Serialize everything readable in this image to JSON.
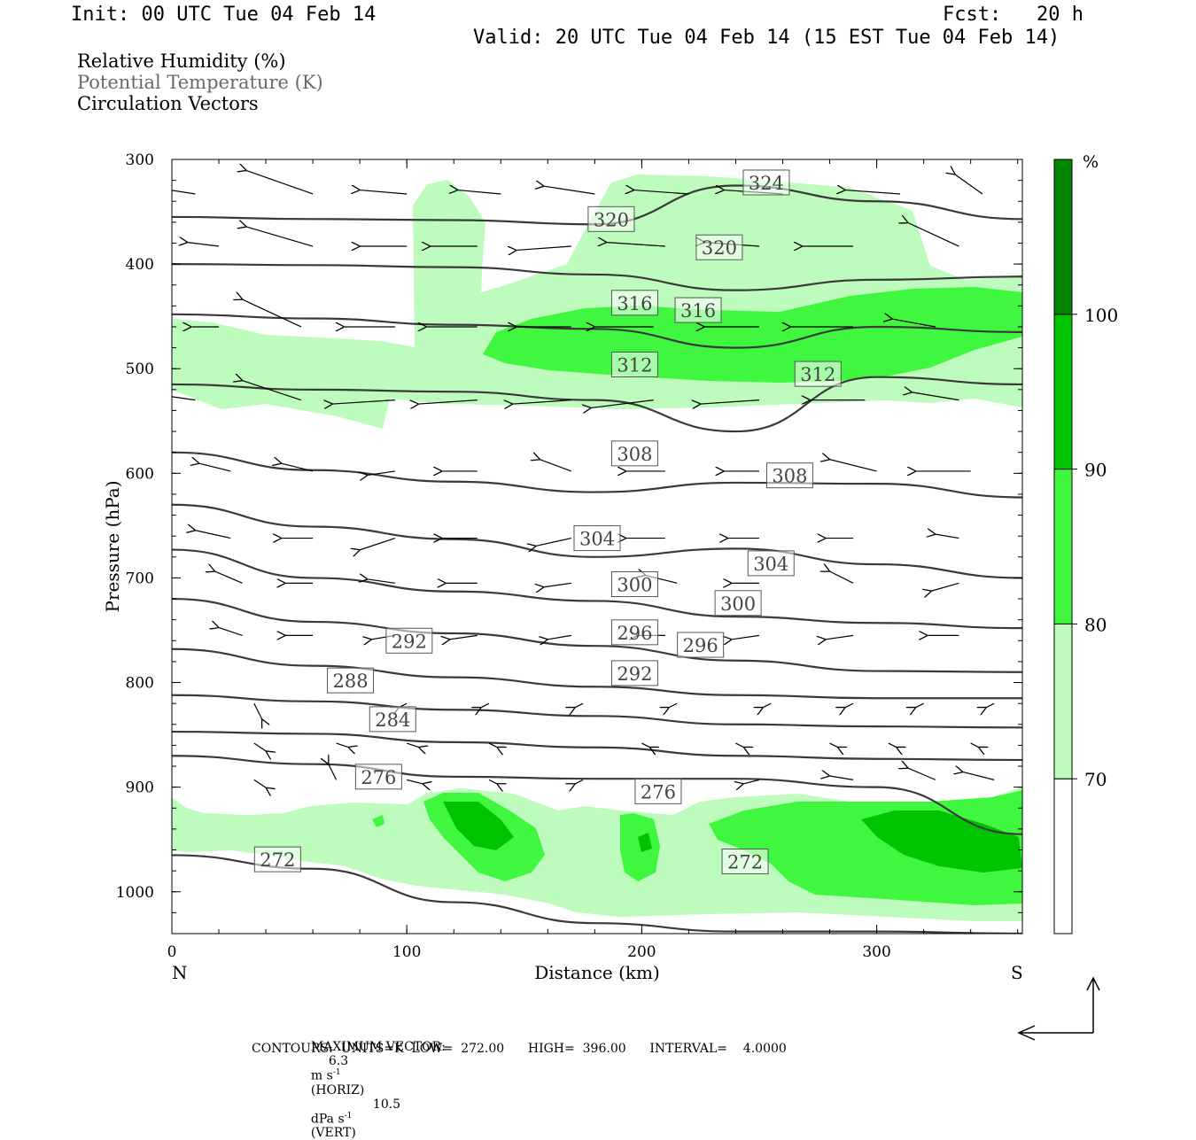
{
  "header": {
    "init": "Init: 00 UTC Tue 04 Feb 14",
    "fcst": "Fcst:   20 h",
    "valid": "Valid: 20 UTC Tue 04 Feb 14 (15 EST Tue 04 Feb 14)"
  },
  "fields": {
    "rh": "Relative Humidity (%)",
    "theta": "Potential Temperature (K)",
    "vectors": "Circulation Vectors"
  },
  "chart_data": {
    "type": "cross-section",
    "ylabel": "Pressure (hPa)",
    "xlabel": "Distance (km)",
    "xlim": [
      0,
      362
    ],
    "ylim": [
      300,
      1040
    ],
    "y_log_scale": false,
    "x_ticks": [
      "0",
      "100",
      "200",
      "300"
    ],
    "y_ticks": [
      "300",
      "400",
      "500",
      "600",
      "700",
      "800",
      "900",
      "1000"
    ],
    "left_end_label": "N",
    "right_end_label": "S",
    "colorbar": {
      "unit": "%",
      "levels": [
        "70",
        "80",
        "90",
        "100"
      ],
      "colors": [
        "#ffffff",
        "#bdfcbd",
        "#3ef73e",
        "#00c400",
        "#008600"
      ]
    },
    "theta_contours": [
      {
        "label": "324",
        "x": [
          0,
          60,
          120,
          180,
          240,
          300,
          362
        ],
        "p": [
          355,
          357,
          358,
          362,
          325,
          340,
          357
        ],
        "labels_at": [
          [
            253,
            322
          ]
        ]
      },
      {
        "label": "320",
        "x": [
          0,
          60,
          120,
          180,
          240,
          300,
          362
        ],
        "p": [
          400,
          401,
          403,
          410,
          425,
          415,
          412
        ],
        "labels_at": [
          [
            187,
            357
          ],
          [
            233,
            384
          ]
        ]
      },
      {
        "label": "316",
        "x": [
          0,
          60,
          120,
          180,
          240,
          300,
          362
        ],
        "p": [
          448,
          452,
          458,
          462,
          480,
          460,
          465
        ],
        "labels_at": [
          [
            197,
            437
          ],
          [
            224,
            444
          ]
        ]
      },
      {
        "label": "312",
        "x": [
          0,
          60,
          120,
          180,
          240,
          300,
          362
        ],
        "p": [
          515,
          520,
          522,
          530,
          560,
          508,
          515
        ],
        "labels_at": [
          [
            197,
            496
          ],
          [
            275,
            505
          ]
        ]
      },
      {
        "label": "308",
        "x": [
          0,
          60,
          120,
          180,
          240,
          300,
          362
        ],
        "p": [
          580,
          597,
          608,
          618,
          609,
          610,
          623
        ],
        "labels_at": [
          [
            197,
            581
          ],
          [
            263,
            602
          ]
        ]
      },
      {
        "label": "304",
        "x": [
          0,
          60,
          120,
          180,
          240,
          300,
          362
        ],
        "p": [
          630,
          651,
          663,
          680,
          672,
          687,
          700
        ],
        "labels_at": [
          [
            181,
            662
          ],
          [
            255,
            686
          ]
        ]
      },
      {
        "label": "300",
        "x": [
          0,
          60,
          120,
          180,
          240,
          300,
          362
        ],
        "p": [
          673,
          700,
          713,
          722,
          737,
          743,
          748
        ],
        "labels_at": [
          [
            197,
            706
          ],
          [
            241,
            724
          ]
        ]
      },
      {
        "label": "296",
        "x": [
          0,
          60,
          120,
          180,
          240,
          300,
          362
        ],
        "p": [
          720,
          742,
          753,
          765,
          779,
          789,
          790
        ],
        "labels_at": [
          [
            197,
            752
          ],
          [
            225,
            764
          ]
        ]
      },
      {
        "label": "292",
        "x": [
          0,
          60,
          120,
          180,
          240,
          300,
          362
        ],
        "p": [
          768,
          784,
          795,
          804,
          812,
          815,
          815
        ],
        "labels_at": [
          [
            101,
            760
          ],
          [
            197,
            791
          ]
        ]
      },
      {
        "label": "288",
        "x": [
          0,
          60,
          120,
          180,
          240,
          300,
          362
        ],
        "p": [
          812,
          818,
          826,
          832,
          840,
          842,
          843
        ],
        "labels_at": [
          [
            76,
            798
          ]
        ]
      },
      {
        "label": "284",
        "x": [
          0,
          60,
          120,
          180,
          240,
          300,
          362
        ],
        "p": [
          847,
          849,
          857,
          862,
          870,
          873,
          874
        ],
        "labels_at": [
          [
            94,
            835
          ]
        ]
      },
      {
        "label": "276",
        "x": [
          0,
          60,
          120,
          180,
          240,
          300,
          362
        ],
        "p": [
          870,
          878,
          890,
          892,
          892,
          900,
          945
        ],
        "labels_at": [
          [
            88,
            890
          ],
          [
            207,
            904
          ]
        ]
      },
      {
        "label": "272",
        "x": [
          0,
          60,
          120,
          180,
          240,
          300,
          362
        ],
        "p": [
          965,
          978,
          1010,
          1030,
          1038,
          1038,
          1040
        ],
        "labels_at": [
          [
            45,
            969
          ],
          [
            244,
            971
          ]
        ]
      }
    ],
    "rh_shading_note": "RH >= 70% shading in two layers: 350-540 hPa (70-90%) and 905-1030 hPa near surface (70-100%)",
    "maximum_vector": {
      "horiz": "6.3 m s⁻¹ (HORIZ)",
      "vert": "10.5 dPa s⁻¹ (VERT)"
    },
    "contours": {
      "units": "K",
      "low": "272.00",
      "high": "396.00",
      "interval": "4.0000"
    }
  },
  "footer": {
    "max_vector_label": "MAXIMUM VECTOR:",
    "max_vector_horiz_value": "6.3",
    "max_vector_horiz_unit": "m s",
    "max_vector_horiz_suffix": "(HORIZ)",
    "max_vector_vert_value": "10.5",
    "max_vector_vert_unit": "dPa s",
    "max_vector_vert_suffix": "(VERT)",
    "exp": "-1",
    "contours_line": "CONTOURS:  UNITS=K  LOW=  272.00      HIGH=  396.00      INTERVAL=    4.0000"
  }
}
